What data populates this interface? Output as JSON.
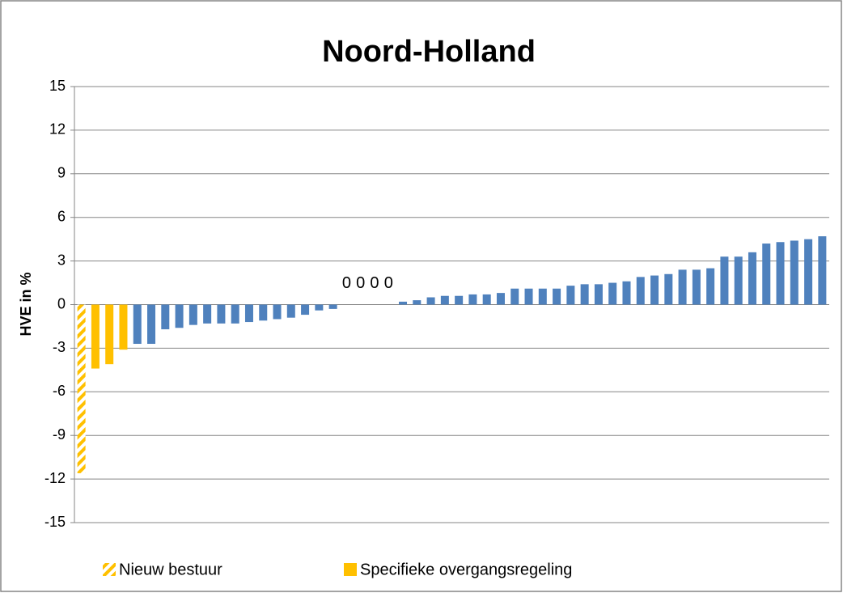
{
  "chart_data": {
    "type": "bar",
    "title": "Noord-Holland",
    "y_label": "HVE in %",
    "categories": [
      null,
      null,
      null,
      null,
      null,
      null,
      null,
      null,
      null,
      null,
      null,
      null,
      null,
      null,
      null,
      null,
      null,
      null,
      null,
      null,
      null,
      null,
      null,
      null,
      null,
      null,
      null,
      null,
      null,
      null,
      null,
      null,
      null,
      null,
      null,
      null,
      null,
      null,
      null,
      null,
      null,
      null,
      null,
      null,
      null,
      null,
      null,
      null,
      null,
      null,
      null,
      null,
      null,
      null
    ],
    "series": [
      {
        "name": "Nieuw bestuur",
        "color": "#FFC000",
        "pattern": "hatch",
        "values": [
          -11.6,
          null,
          null,
          null,
          null,
          null,
          null,
          null,
          null,
          null,
          null,
          null,
          null,
          null,
          null,
          null,
          null,
          null,
          null,
          null,
          null,
          null,
          null,
          null,
          null,
          null,
          null,
          null,
          null,
          null,
          null,
          null,
          null,
          null,
          null,
          null,
          null,
          null,
          null,
          null,
          null,
          null,
          null,
          null,
          null,
          null,
          null,
          null,
          null,
          null,
          null,
          null,
          null,
          null
        ]
      },
      {
        "name": "Specifieke overgangsregeling",
        "color": "#FFC000",
        "values": [
          null,
          -4.4,
          -4.1,
          -3.1,
          null,
          null,
          null,
          null,
          null,
          null,
          null,
          null,
          null,
          null,
          null,
          null,
          null,
          null,
          null,
          null,
          null,
          null,
          null,
          null,
          null,
          null,
          null,
          null,
          null,
          null,
          null,
          null,
          null,
          null,
          null,
          null,
          null,
          null,
          null,
          null,
          null,
          null,
          null,
          null,
          null,
          null,
          null,
          null,
          null,
          null,
          null,
          null,
          null,
          null
        ]
      },
      {
        "color": "#4F81BD",
        "label_zero_values": true,
        "values": [
          null,
          null,
          null,
          null,
          -2.7,
          -2.7,
          -1.7,
          -1.6,
          -1.4,
          -1.3,
          -1.3,
          -1.3,
          -1.2,
          -1.1,
          -1.0,
          -0.9,
          -0.7,
          -0.4,
          -0.3,
          0,
          0,
          0,
          0,
          0.2,
          0.3,
          0.5,
          0.6,
          0.6,
          0.7,
          0.7,
          0.8,
          1.1,
          1.1,
          1.1,
          1.1,
          1.3,
          1.4,
          1.4,
          1.5,
          1.6,
          1.9,
          2.0,
          2.1,
          2.4,
          2.4,
          2.5,
          3.3,
          3.3,
          3.6,
          4.2,
          4.3,
          4.4,
          4.5,
          4.7
        ]
      }
    ],
    "ylim": [
      -15,
      15
    ],
    "yticks": [
      -15,
      -12,
      -9,
      -6,
      -3,
      0,
      3,
      6,
      9,
      12,
      15
    ],
    "grid": true,
    "legend": "bottom"
  }
}
